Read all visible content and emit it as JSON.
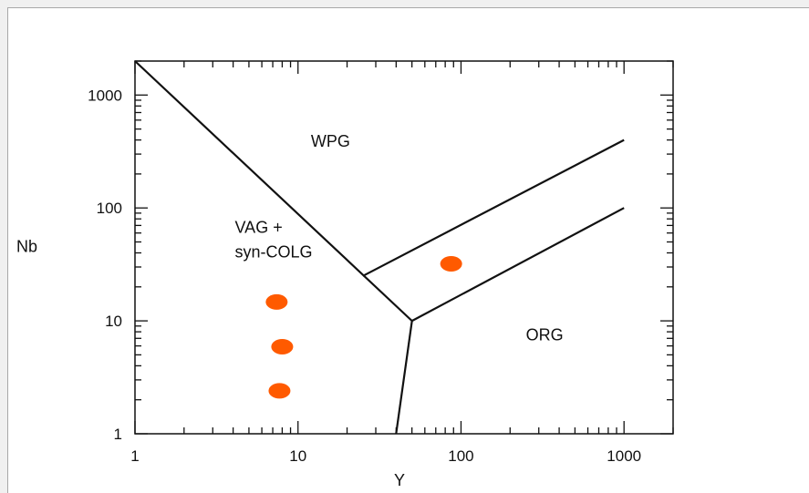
{
  "chart_data": {
    "type": "scatter",
    "xlabel": "Y",
    "ylabel": "Nb",
    "xscale": "log",
    "yscale": "log",
    "xlim": [
      1,
      2000
    ],
    "ylim": [
      1,
      2000
    ],
    "x_ticks": [
      1,
      10,
      100,
      1000
    ],
    "y_ticks": [
      1,
      10,
      100,
      1000
    ],
    "x_tick_labels": [
      "1",
      "10",
      "100",
      "1000"
    ],
    "y_tick_labels": [
      "1",
      "10",
      "100",
      "1000"
    ],
    "grid": false,
    "legend": "none",
    "point_color": "#ff5a00",
    "points": [
      {
        "x": 7.4,
        "y": 14.7
      },
      {
        "x": 8.0,
        "y": 5.9
      },
      {
        "x": 7.7,
        "y": 2.4
      },
      {
        "x": 87,
        "y": 32
      }
    ],
    "boundaries": [
      {
        "points": [
          [
            1,
            2000
          ],
          [
            50,
            10
          ],
          [
            40,
            1
          ]
        ]
      },
      {
        "points": [
          [
            50,
            10
          ],
          [
            1000,
            100
          ]
        ]
      },
      {
        "points": [
          [
            25,
            25
          ],
          [
            1000,
            400
          ]
        ]
      }
    ],
    "regions": [
      {
        "lines": [
          "WPG"
        ],
        "x": 12,
        "y": 350
      },
      {
        "lines": [
          "VAG +",
          "syn-COLG"
        ],
        "x": 4.1,
        "y": 60
      },
      {
        "lines": [
          "ORG"
        ],
        "x": 250,
        "y": 6.7
      }
    ]
  }
}
